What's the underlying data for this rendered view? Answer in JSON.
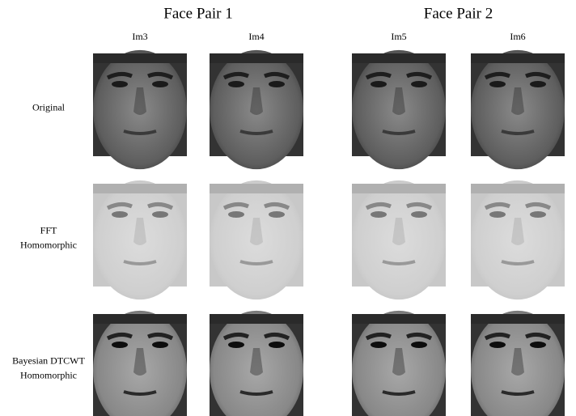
{
  "groups": [
    {
      "title": "Face Pair 1",
      "columns": [
        "Im3",
        "Im4"
      ]
    },
    {
      "title": "Face Pair 2",
      "columns": [
        "Im5",
        "Im6"
      ]
    }
  ],
  "rows": [
    {
      "label": [
        "Original"
      ]
    },
    {
      "label": [
        "FFT",
        "Homomorphic"
      ]
    },
    {
      "label": [
        "Bayesian DTCWT",
        "Homomorphic"
      ]
    }
  ]
}
